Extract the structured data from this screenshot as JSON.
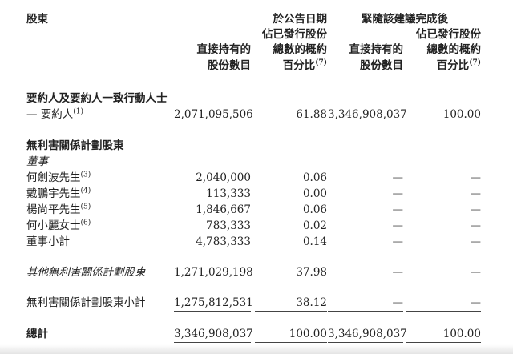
{
  "header": {
    "shareholder": "股東",
    "group_announcement": "於公告日期",
    "group_completion": "緊隨該建議完成後",
    "col_shares": [
      "直接持有的",
      "股份數目"
    ],
    "col_pct": [
      "佔已發行股份",
      "總數的概約",
      "百分比"
    ],
    "pct_note": "(7)"
  },
  "section1": {
    "title": "要約人及要約人一致行動人士",
    "row": {
      "label": "— 要約人",
      "note": "(1)",
      "v1": "2,071,095,506",
      "v2": "61.88",
      "v3": "3,346,908,037",
      "v4": "100.00"
    }
  },
  "section2": {
    "title": "無利害關係計劃股東",
    "subtitle": "董事",
    "rows": [
      {
        "label": "何劍波先生",
        "note": "(3)",
        "v1": "2,040,000",
        "v2": "0.06",
        "v3": "—",
        "v4": "—"
      },
      {
        "label": "戴鵬宇先生",
        "note": "(4)",
        "v1": "113,333",
        "v2": "0.00",
        "v3": "—",
        "v4": "—"
      },
      {
        "label": "楊尚平先生",
        "note": "(5)",
        "v1": "1,846,667",
        "v2": "0.06",
        "v3": "—",
        "v4": "—"
      },
      {
        "label": "何小麗女士",
        "note": "(6)",
        "v1": "783,333",
        "v2": "0.02",
        "v3": "—",
        "v4": "—"
      },
      {
        "label": "董事小計",
        "note": "",
        "v1": "4,783,333",
        "v2": "0.14",
        "v3": "—",
        "v4": "—"
      }
    ],
    "other": {
      "label": "其他無利害關係計劃股東",
      "v1": "1,271,029,198",
      "v2": "37.98",
      "v3": "—",
      "v4": "—"
    },
    "subtotal": {
      "label": "無利害關係計劃股東小計",
      "v1": "1,275,812,531",
      "v2": "38.12",
      "v3": "—",
      "v4": "—"
    }
  },
  "total": {
    "label": "總計",
    "v1": "3,346,908,037",
    "v2": "100.00",
    "v3": "3,346,908,037",
    "v4": "100.00"
  }
}
